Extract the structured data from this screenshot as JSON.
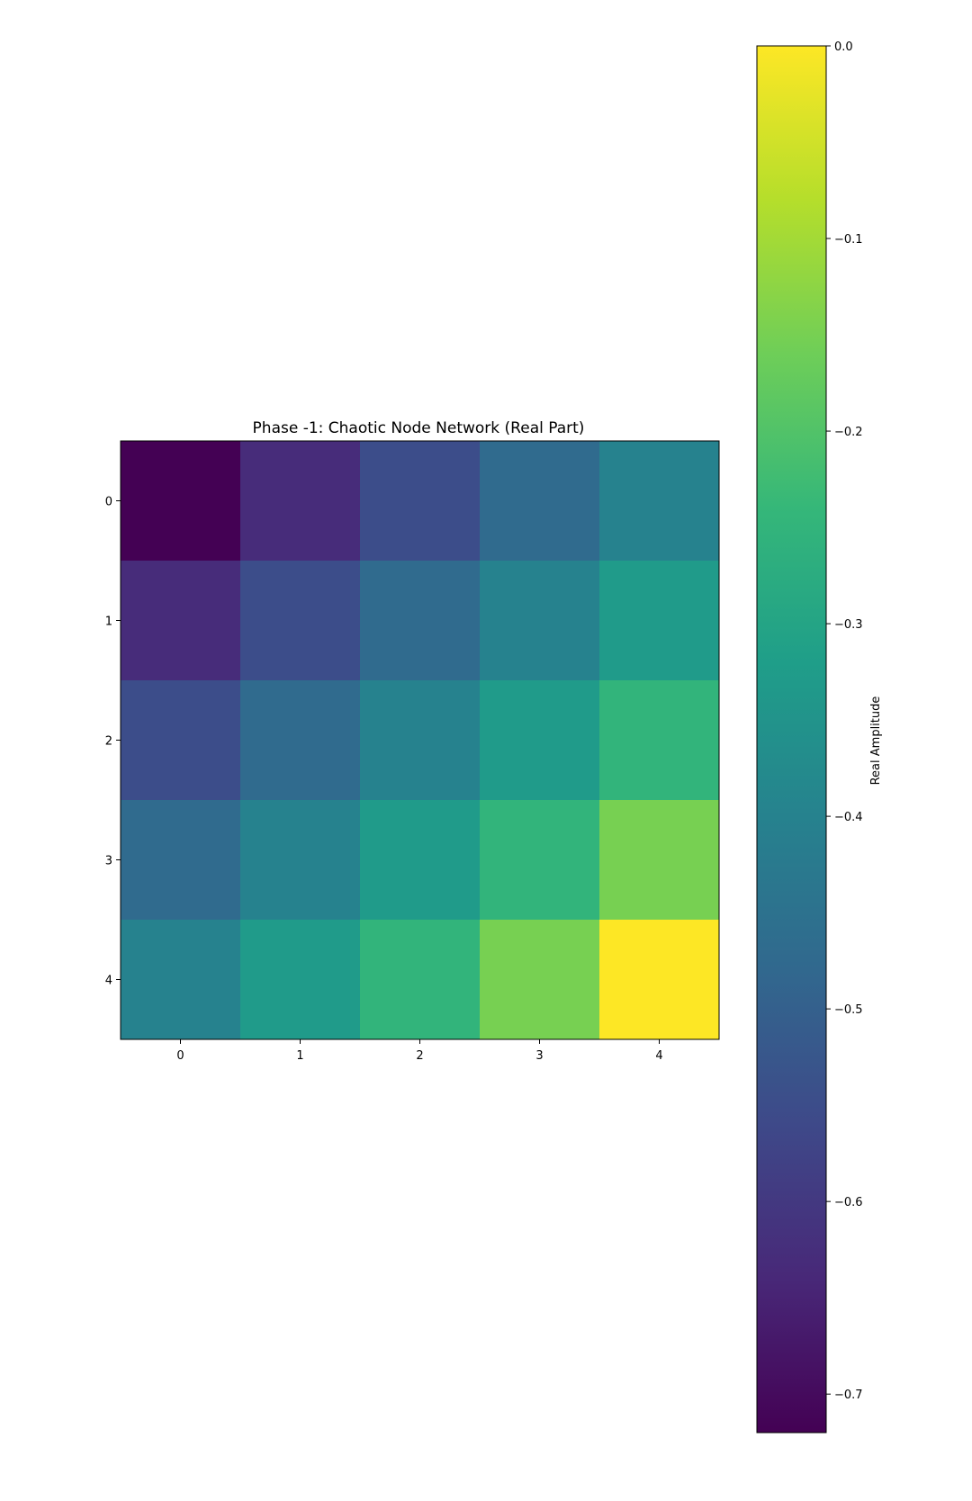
{
  "chart_data": {
    "type": "heatmap",
    "title": "Phase -1: Chaotic Node Network (Real Part)",
    "x_ticks": [
      "0",
      "1",
      "2",
      "3",
      "4"
    ],
    "y_ticks": [
      "0",
      "1",
      "2",
      "3",
      "4"
    ],
    "values": [
      [
        -0.72,
        -0.63,
        -0.55,
        -0.47,
        -0.4
      ],
      [
        -0.63,
        -0.55,
        -0.47,
        -0.4,
        -0.33
      ],
      [
        -0.55,
        -0.47,
        -0.4,
        -0.33,
        -0.25
      ],
      [
        -0.47,
        -0.4,
        -0.33,
        -0.25,
        -0.15
      ],
      [
        -0.4,
        -0.33,
        -0.25,
        -0.15,
        0.0
      ]
    ],
    "colormap": "viridis",
    "colorbar": {
      "label": "Real Amplitude",
      "range": [
        -0.72,
        0.0
      ],
      "ticks": [
        {
          "value": 0.0,
          "label": "0.0"
        },
        {
          "value": -0.1,
          "label": "−0.1"
        },
        {
          "value": -0.2,
          "label": "−0.2"
        },
        {
          "value": -0.3,
          "label": "−0.3"
        },
        {
          "value": -0.4,
          "label": "−0.4"
        },
        {
          "value": -0.5,
          "label": "−0.5"
        },
        {
          "value": -0.6,
          "label": "−0.6"
        },
        {
          "value": -0.7,
          "label": "−0.7"
        }
      ]
    }
  }
}
